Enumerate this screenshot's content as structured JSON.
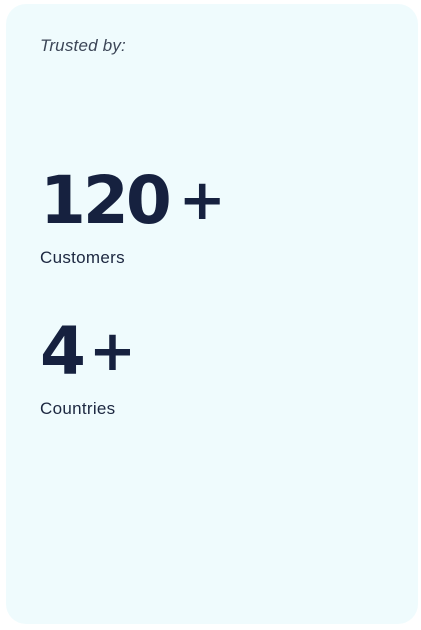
{
  "card": {
    "eyebrow": "Trusted by:"
  },
  "stats": [
    {
      "value": "120",
      "suffix": "+",
      "label": "Customers"
    },
    {
      "value": "4",
      "suffix": "+",
      "label": "Countries"
    }
  ],
  "colors": {
    "card_background": "#effbfd",
    "value_text": "#16213f",
    "label_text": "#1c2740"
  }
}
